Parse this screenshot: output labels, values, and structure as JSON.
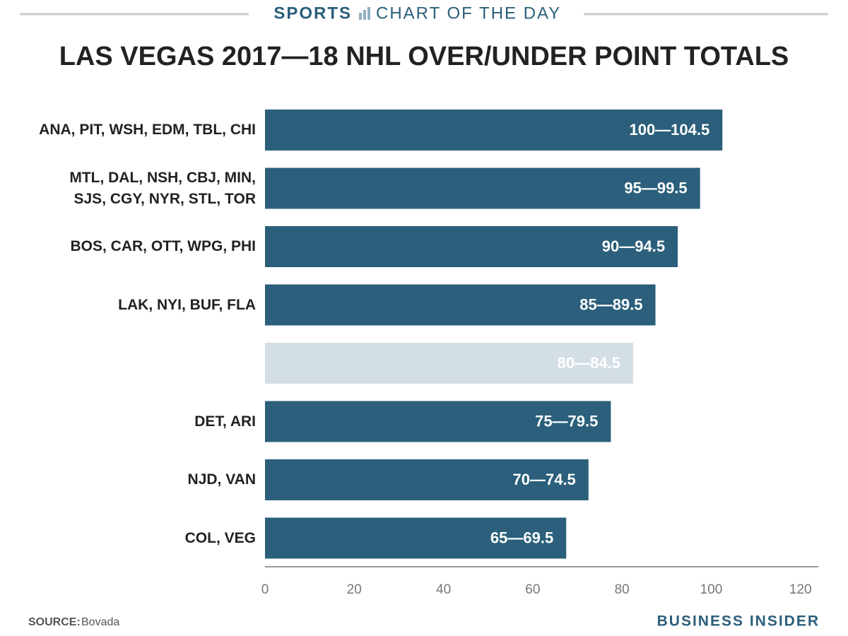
{
  "header": {
    "section": "SPORTS",
    "series_name": "CHART OF THE DAY"
  },
  "chart_data": {
    "type": "barh",
    "title": "LAS VEGAS 2017—18 NHL OVER/UNDER POINT TOTALS",
    "categories": [
      "ANA, PIT, WSH, EDM, TBL, CHI",
      "MTL, DAL, NSH, CBJ, MIN,\nSJS, CGY, NYR, STL, TOR",
      "BOS, CAR, OTT, WPG, PHI",
      "LAK, NYI, BUF, FLA",
      null,
      "DET, ARI",
      "NJD, VAN",
      "COL, VEG"
    ],
    "values": [
      102.5,
      97.5,
      92.5,
      87.5,
      82.5,
      77.5,
      72.5,
      67.5
    ],
    "bar_labels": [
      "100—104.5",
      "95—99.5",
      "90—94.5",
      "85—89.5",
      "80—84.5",
      "75—79.5",
      "70—74.5",
      "65—69.5"
    ],
    "colors": [
      "#2b5f7b",
      "#2b5f7b",
      "#2b5f7b",
      "#2b5f7b",
      "#d3dee5",
      "#2b5f7b",
      "#2b5f7b",
      "#2b5f7b"
    ],
    "xlim": [
      0,
      124
    ],
    "xticks": [
      0,
      20,
      40,
      60,
      80,
      100,
      120
    ]
  },
  "footer": {
    "source_label": "SOURCE:",
    "source": "Bovada",
    "brand": "BUSINESS INSIDER"
  }
}
